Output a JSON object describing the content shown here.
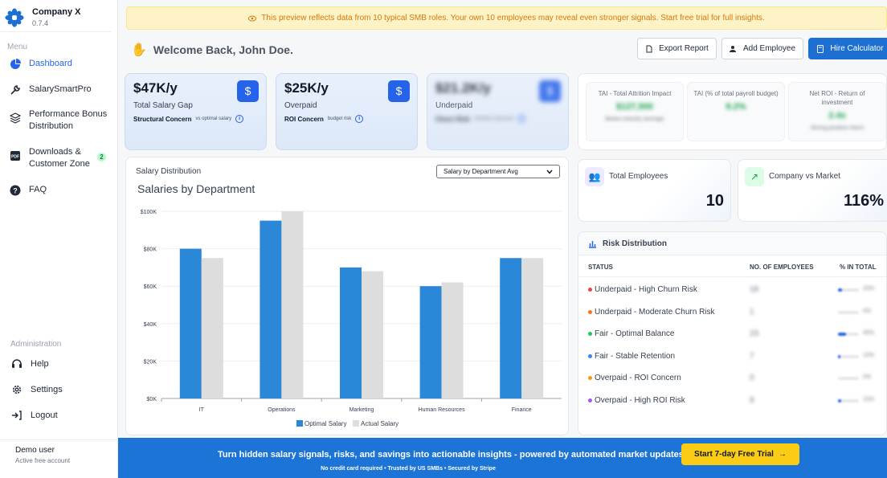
{
  "brand": {
    "name": "Company X",
    "version": "0.7.4",
    "logo_icon": "flower-logo-icon"
  },
  "sidebar": {
    "menu_title": "Menu",
    "items": [
      {
        "label": "Dashboard",
        "icon": "pie-chart-icon",
        "active": true
      },
      {
        "label": "SalarySmartPro",
        "icon": "tools-icon"
      },
      {
        "label": "Performance Bonus Distribution",
        "icon": "layers-icon"
      },
      {
        "label": "Downloads & Customer Zone",
        "icon": "pdf-icon",
        "badge": "2"
      },
      {
        "label": "FAQ",
        "icon": "question-icon"
      }
    ],
    "admin_title": "Administration",
    "admin_items": [
      {
        "label": "Help",
        "icon": "headset-icon"
      },
      {
        "label": "Settings",
        "icon": "gear-icon"
      },
      {
        "label": "Logout",
        "icon": "logout-icon"
      }
    ],
    "user": {
      "name": "Demo user",
      "status": "Active free account"
    }
  },
  "notice": "This preview reflects data from 10 typical SMB roles. Your own 10 employees may reveal even stronger signals. Start free trial for full insights.",
  "header": {
    "welcome": "Welcome Back, John Doe.",
    "export_label": "Export Report",
    "add_label": "Add Employee",
    "hire_label": "Hire Calculator"
  },
  "kpis": [
    {
      "value": "$47K/y",
      "label": "Total Salary Gap",
      "foot": "Structural Concern",
      "foot_sub": "vs optimal salary"
    },
    {
      "value": "$25K/y",
      "label": "Overpaid",
      "foot": "ROI Concern",
      "foot_sub": "budget risk"
    },
    {
      "value": "$21.2K/y",
      "label": "Underpaid",
      "foot": "Churn Risk",
      "foot_sub": "retention exposure"
    }
  ],
  "tai": [
    {
      "title": "TAI - Total Attrition Impact",
      "value": "$127,500",
      "sub": "Below industry average"
    },
    {
      "title": "TAI (% of total payroll budget)",
      "value": "8.2%",
      "sub": ""
    },
    {
      "title": "Net ROI - Return of investment",
      "value": "2.4x",
      "sub": "Strong positive return"
    }
  ],
  "stats": {
    "employees_label": "Total Employees",
    "employees_value": "10",
    "market_label": "Company vs Market",
    "market_value": "116%"
  },
  "chart": {
    "header": "Salary Distribution",
    "select_value": "Salary by Department Avg"
  },
  "chart_data": {
    "type": "bar",
    "title": "Salaries by Department",
    "categories": [
      "IT",
      "Operations",
      "Marketing",
      "Human Resources",
      "Finance"
    ],
    "series": [
      {
        "name": "Optimal Salary",
        "values": [
          80000,
          95000,
          70000,
          60000,
          75000
        ],
        "color": "#2b87d8"
      },
      {
        "name": "Actual Salary",
        "values": [
          75000,
          100000,
          68000,
          62000,
          75000
        ],
        "color": "#dddddd"
      }
    ],
    "yticks": [
      "$0K",
      "$20K",
      "$40K",
      "$60K",
      "$80K",
      "$100K"
    ],
    "ylim": [
      0,
      100000
    ],
    "grid": true,
    "legend": "bottom"
  },
  "risk": {
    "title": "Risk Distribution",
    "columns": [
      "STATUS",
      "NO. OF EMPLOYEES",
      "% IN TOTAL"
    ],
    "rows": [
      {
        "label": "Underpaid - High Churn Risk",
        "color": "#ef4444",
        "count": "18",
        "pct": "20%",
        "fill": 0.2
      },
      {
        "label": "Underpaid - Moderate Churn Risk",
        "color": "#f97316",
        "count": "1",
        "pct": "0%",
        "fill": 0.0
      },
      {
        "label": "Fair - Optimal Balance",
        "color": "#22c55e",
        "count": "23",
        "pct": "40%",
        "fill": 0.4
      },
      {
        "label": "Fair - Stable Retention",
        "color": "#3b82f6",
        "count": "7",
        "pct": "10%",
        "fill": 0.1
      },
      {
        "label": "Overpaid - ROI Concern",
        "color": "#f59e0b",
        "count": "0",
        "pct": "0%",
        "fill": 0.0
      },
      {
        "label": "Overpaid - High ROI Risk",
        "color": "#a855f7",
        "count": "8",
        "pct": "15%",
        "fill": 0.15
      }
    ]
  },
  "cta": {
    "text": "Turn hidden salary signals, risks, and savings into actionable insights - powered by automated market updates.",
    "sub": "No credit card required • Trusted by US SMBs • Secured by Stripe",
    "button": "Start 7-day Free Trial"
  }
}
